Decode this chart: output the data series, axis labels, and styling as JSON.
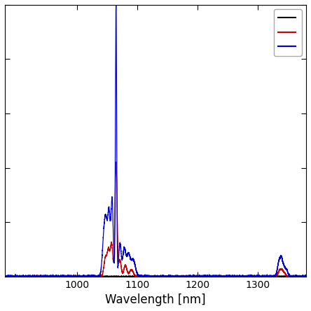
{
  "x_min": 880,
  "x_max": 1380,
  "y_min": 0,
  "y_max": 1.0,
  "xlabel": "Wavelength [nm]",
  "xticks": [
    1000,
    1100,
    1200,
    1300
  ],
  "line_colors": [
    "#000000",
    "#cc0000",
    "#0000cc"
  ],
  "background_color": "#ffffff",
  "figsize": [
    4.44,
    4.44
  ],
  "dpi": 100
}
